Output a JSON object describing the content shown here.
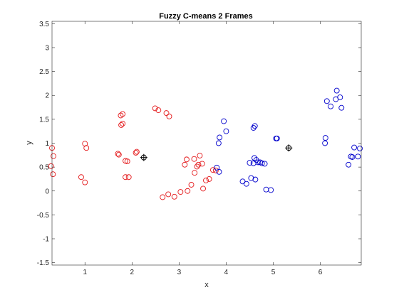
{
  "chart_data": {
    "type": "scatter",
    "title": "Fuzzy C-means 2 Frames",
    "xlabel": "x",
    "ylabel": "y",
    "xlim": [
      0.3,
      6.87
    ],
    "ylim": [
      -1.55,
      3.55
    ],
    "xticks": [
      1,
      2,
      3,
      4,
      5,
      6
    ],
    "yticks": [
      -1.5,
      -1,
      -0.5,
      0,
      0.5,
      1,
      1.5,
      2,
      2.5,
      3,
      3.5
    ],
    "ytick_labels": [
      "-1.5",
      "-1",
      "-0.5",
      "0",
      "0.5",
      "1",
      "1.5",
      "2",
      "2.5",
      "3",
      "3.5"
    ],
    "grid": false,
    "series": [
      {
        "color": "#e41a1c",
        "marker": "circle",
        "points": [
          [
            0.3,
            0.9
          ],
          [
            0.33,
            0.73
          ],
          [
            0.28,
            0.52
          ],
          [
            0.32,
            0.35
          ],
          [
            0.92,
            0.29
          ],
          [
            1.0,
            0.99
          ],
          [
            1.03,
            0.9
          ],
          [
            1.0,
            0.18
          ],
          [
            1.7,
            0.78
          ],
          [
            1.72,
            0.76
          ],
          [
            1.76,
            1.58
          ],
          [
            1.8,
            1.61
          ],
          [
            1.77,
            1.38
          ],
          [
            1.8,
            1.41
          ],
          [
            1.86,
            0.63
          ],
          [
            1.9,
            0.62
          ],
          [
            1.86,
            0.29
          ],
          [
            1.93,
            0.29
          ],
          [
            2.08,
            0.8
          ],
          [
            2.1,
            0.82
          ],
          [
            2.49,
            1.73
          ],
          [
            2.56,
            1.69
          ],
          [
            2.73,
            1.63
          ],
          [
            2.79,
            1.56
          ],
          [
            2.65,
            -0.13
          ],
          [
            2.77,
            -0.07
          ],
          [
            2.9,
            -0.12
          ],
          [
            3.03,
            -0.02
          ],
          [
            3.18,
            0.0
          ],
          [
            3.26,
            0.13
          ],
          [
            3.33,
            0.38
          ],
          [
            3.38,
            0.51
          ],
          [
            3.41,
            0.55
          ],
          [
            3.44,
            0.74
          ],
          [
            3.49,
            0.57
          ],
          [
            3.51,
            0.05
          ],
          [
            3.57,
            0.22
          ],
          [
            3.64,
            0.25
          ],
          [
            3.72,
            0.44
          ],
          [
            3.12,
            0.55
          ],
          [
            3.16,
            0.66
          ],
          [
            3.32,
            0.67
          ],
          [
            3.78,
            0.43
          ]
        ]
      },
      {
        "color": "#0000cc",
        "marker": "circle",
        "points": [
          [
            3.8,
            0.49
          ],
          [
            3.85,
            0.4
          ],
          [
            3.84,
            1.0
          ],
          [
            3.86,
            1.12
          ],
          [
            3.95,
            1.46
          ],
          [
            4.0,
            1.25
          ],
          [
            4.35,
            0.2
          ],
          [
            4.43,
            0.15
          ],
          [
            4.53,
            0.27
          ],
          [
            4.58,
            0.58
          ],
          [
            4.6,
            0.69
          ],
          [
            4.62,
            0.24
          ],
          [
            4.64,
            0.65
          ],
          [
            4.68,
            0.6
          ],
          [
            4.72,
            0.6
          ],
          [
            4.76,
            0.58
          ],
          [
            4.82,
            0.57
          ],
          [
            4.58,
            1.32
          ],
          [
            4.61,
            1.36
          ],
          [
            4.85,
            0.03
          ],
          [
            4.95,
            0.02
          ],
          [
            5.06,
            1.1
          ],
          [
            5.08,
            1.1
          ],
          [
            6.1,
            1.0
          ],
          [
            6.11,
            1.11
          ],
          [
            6.14,
            1.88
          ],
          [
            6.22,
            1.77
          ],
          [
            6.33,
            1.92
          ],
          [
            6.35,
            2.1
          ],
          [
            6.42,
            1.96
          ],
          [
            6.45,
            1.74
          ],
          [
            6.6,
            0.55
          ],
          [
            6.65,
            0.72
          ],
          [
            6.68,
            0.71
          ],
          [
            6.72,
            0.91
          ],
          [
            6.8,
            0.72
          ],
          [
            6.84,
            0.89
          ],
          [
            4.5,
            0.59
          ]
        ]
      }
    ],
    "centers": {
      "color": "#000000",
      "marker": "circle-plus",
      "points": [
        [
          2.25,
          0.7
        ],
        [
          5.33,
          0.9
        ]
      ]
    }
  }
}
